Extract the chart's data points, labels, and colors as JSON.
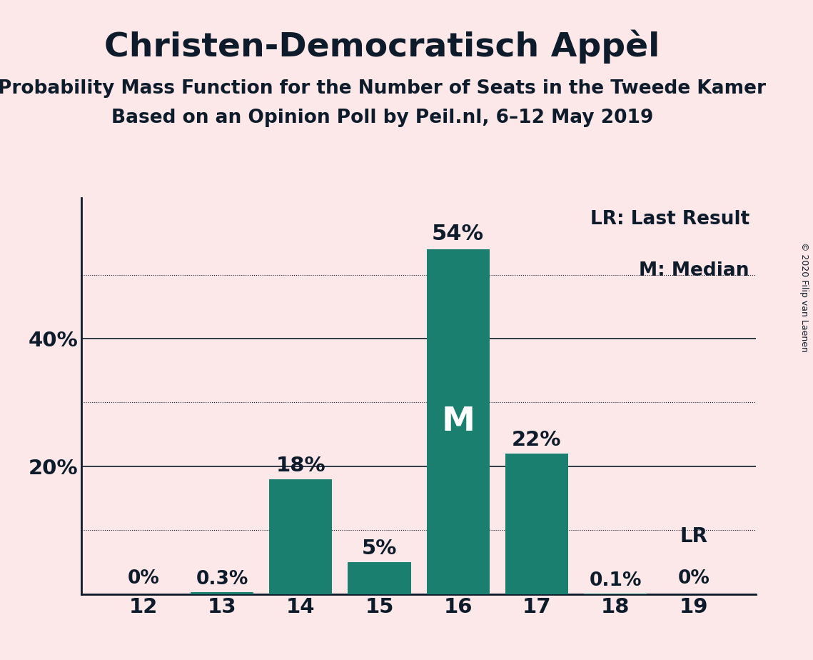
{
  "title": "Christen-Democratisch Appèl",
  "subtitle1": "Probability Mass Function for the Number of Seats in the Tweede Kamer",
  "subtitle2": "Based on an Opinion Poll by Peil.nl, 6–12 May 2019",
  "copyright": "© 2020 Filip van Laenen",
  "categories": [
    12,
    13,
    14,
    15,
    16,
    17,
    18,
    19
  ],
  "values": [
    0.0,
    0.3,
    18.0,
    5.0,
    54.0,
    22.0,
    0.1,
    0.0
  ],
  "bar_color": "#1a7f6e",
  "background_color": "#fce8e8",
  "labels": [
    "0%",
    "0.3%",
    "18%",
    "5%",
    "54%",
    "22%",
    "0.1%",
    "0%"
  ],
  "median_bar": 16,
  "lr_bar": 19,
  "legend_lr": "LR: Last Result",
  "legend_m": "M: Median",
  "solid_yticks": [
    0,
    20,
    40
  ],
  "dotted_yticks": [
    10,
    30,
    50
  ],
  "ylim": [
    0,
    62
  ],
  "title_fontsize": 34,
  "subtitle_fontsize": 19,
  "label_fontsize": 19,
  "tick_fontsize": 21,
  "legend_fontsize": 19,
  "axes_label_color": "#0d1b2a",
  "spine_color": "#0d1b2a"
}
